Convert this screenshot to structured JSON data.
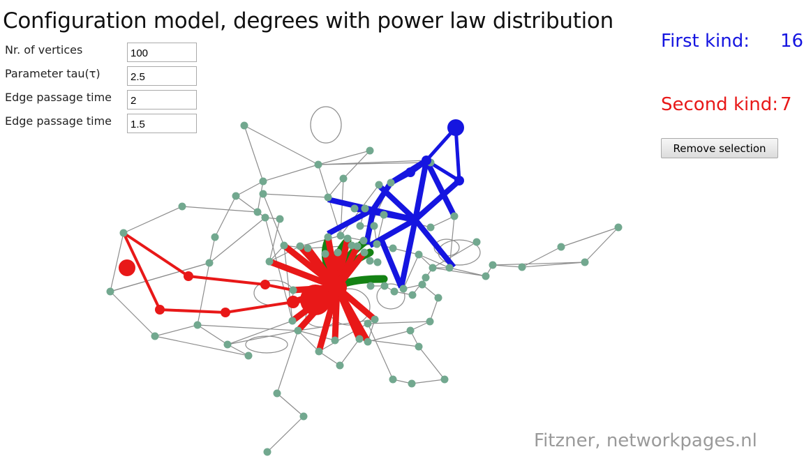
{
  "title": "Configuration model, degrees with power law distribution",
  "parameters": [
    {
      "label": "Nr. of vertices",
      "value": "100"
    },
    {
      "label": "Parameter tau(τ)",
      "value": "2.5"
    },
    {
      "label": "Edge passage time",
      "value": "2"
    },
    {
      "label": "Edge passage time",
      "value": "1.5"
    }
  ],
  "first_kind": {
    "label": "First kind:",
    "value": "16",
    "color": "#1515e0"
  },
  "second_kind": {
    "label": "Second kind:",
    "value": "7",
    "color": "#e81818"
  },
  "remove_button": "Remove selection",
  "credit": "Fitzner, networkpages.nl",
  "colors": {
    "node": "#72a88f",
    "edge": "#8c8c8c",
    "blue": "#1515e0",
    "red": "#e81818",
    "green": "#148214"
  }
}
